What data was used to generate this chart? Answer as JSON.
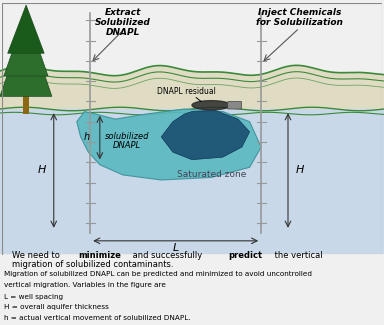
{
  "fig_width": 3.84,
  "fig_height": 3.25,
  "dpi": 100,
  "bg_color": "#f0f0f0",
  "saturated_zone_color": "#c8d8e8",
  "solubilized_color": "#5ab8c0",
  "dnapl_dark_color": "#1a5070",
  "tree_color": "#2d6e2d",
  "well_color": "#999999",
  "caption_lines": [
    "Migration of solubilized DNAPL can be predicted and minimized to avoid uncontrolled",
    "vertical migration. Variables in the figure are",
    "L = well spacing",
    "H = overall aquifer thickness",
    "h = actual vertical movement of solubilized DNAPL."
  ]
}
